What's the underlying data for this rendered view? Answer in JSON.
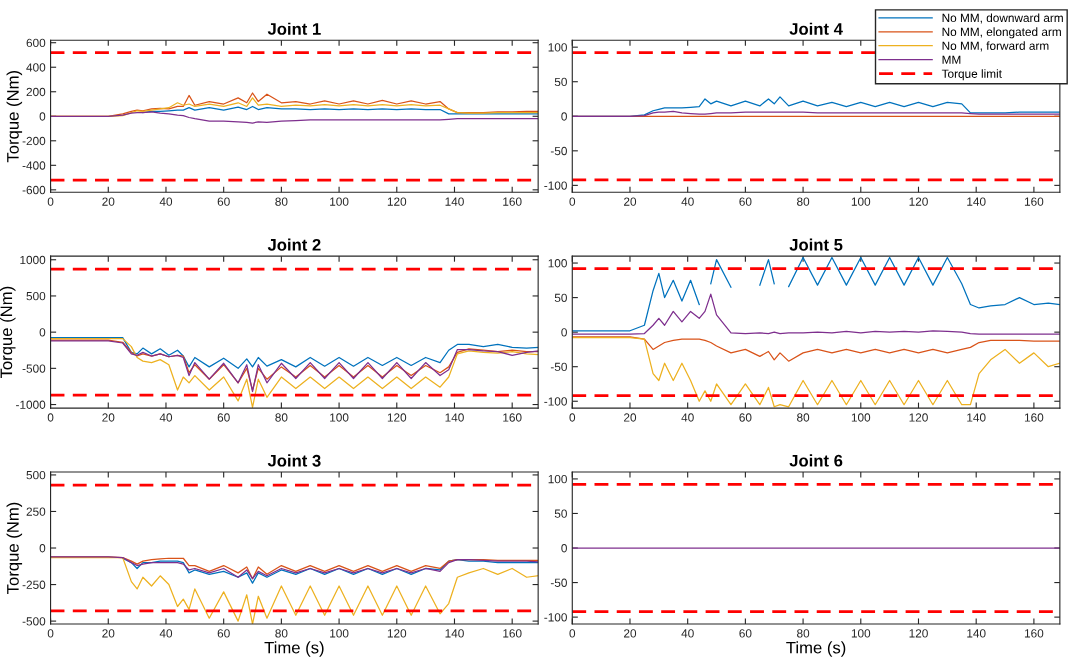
{
  "chart_data": [
    {
      "type": "line",
      "title": "Joint 1",
      "ylabel": "Torque (Nm)",
      "xlim": [
        0,
        169
      ],
      "xticks": [
        0,
        20,
        40,
        60,
        80,
        100,
        120,
        140,
        160
      ],
      "ylim": [
        -620,
        620
      ],
      "yticks": [
        -600,
        -400,
        -200,
        0,
        200,
        400,
        600
      ],
      "x": [
        0,
        20,
        25,
        28,
        30,
        32,
        35,
        38,
        41,
        44,
        46,
        48,
        50,
        55,
        60,
        65,
        68,
        70,
        72,
        75,
        80,
        85,
        90,
        95,
        100,
        105,
        110,
        115,
        120,
        125,
        130,
        135,
        138,
        141,
        145,
        150,
        155,
        160,
        165,
        169
      ],
      "series": [
        {
          "color": "#0072bd",
          "values": [
            null,
            null,
            null,
            null,
            null,
            30,
            40,
            40,
            45,
            50,
            50,
            70,
            50,
            70,
            50,
            75,
            55,
            80,
            55,
            70,
            60,
            60,
            55,
            60,
            55,
            60,
            55,
            60,
            55,
            60,
            55,
            55,
            20,
            20,
            20,
            20,
            20,
            20,
            20,
            20
          ]
        },
        {
          "color": "#d95319",
          "values": [
            0,
            0,
            20,
            40,
            50,
            45,
            60,
            65,
            60,
            80,
            80,
            170,
            90,
            120,
            100,
            150,
            110,
            190,
            120,
            180,
            110,
            120,
            100,
            125,
            100,
            125,
            100,
            130,
            100,
            125,
            100,
            120,
            60,
            30,
            30,
            30,
            35,
            35,
            40,
            40
          ]
        },
        {
          "color": "#edb120",
          "values": [
            0,
            0,
            5,
            30,
            45,
            40,
            50,
            60,
            70,
            110,
            90,
            100,
            80,
            100,
            80,
            110,
            80,
            150,
            90,
            100,
            80,
            90,
            85,
            95,
            85,
            95,
            85,
            95,
            85,
            95,
            85,
            90,
            60,
            30,
            25,
            25,
            30,
            30,
            30,
            30
          ]
        },
        {
          "color": "#7e2f8e",
          "values": [
            0,
            0,
            10,
            25,
            30,
            30,
            35,
            25,
            20,
            10,
            5,
            -10,
            -20,
            -40,
            -40,
            -45,
            -50,
            -55,
            -45,
            -50,
            -40,
            -35,
            -30,
            -30,
            -30,
            -30,
            -30,
            -30,
            -30,
            -30,
            -30,
            -30,
            -25,
            -20,
            -20,
            -20,
            -20,
            -20,
            -20,
            -20
          ]
        }
      ],
      "ref_lines": [
        {
          "axis": "y",
          "value": 520,
          "color": "#ff0000",
          "line_style": "dashed"
        },
        {
          "axis": "y",
          "value": -520,
          "color": "#ff0000",
          "line_style": "dashed"
        }
      ]
    },
    {
      "type": "line",
      "title": "Joint 4",
      "xlim": [
        0,
        169
      ],
      "xticks": [
        0,
        20,
        40,
        60,
        80,
        100,
        120,
        140,
        160
      ],
      "ylim": [
        -110,
        110
      ],
      "yticks": [
        -100,
        -50,
        0,
        50,
        100
      ],
      "legend": "top right",
      "x": [
        0,
        20,
        25,
        28,
        30,
        32,
        35,
        38,
        41,
        44,
        46,
        48,
        50,
        55,
        60,
        65,
        68,
        70,
        72,
        75,
        80,
        85,
        90,
        95,
        100,
        105,
        110,
        115,
        120,
        125,
        130,
        135,
        138,
        141,
        145,
        150,
        155,
        160,
        165,
        169
      ],
      "series": [
        {
          "name": "No MM, downward arm",
          "color": "#0072bd",
          "values": [
            0,
            0,
            2,
            8,
            10,
            12,
            12,
            12,
            13,
            14,
            25,
            18,
            22,
            15,
            22,
            15,
            25,
            18,
            28,
            15,
            22,
            15,
            20,
            14,
            20,
            14,
            20,
            14,
            20,
            14,
            20,
            18,
            5,
            5,
            5,
            5,
            6,
            6,
            6,
            6
          ]
        },
        {
          "name": "No MM, elongated arm",
          "color": "#d95319",
          "values": [
            0,
            0,
            0,
            0,
            0,
            0,
            0,
            0,
            0,
            0,
            0,
            0,
            0,
            0,
            0,
            0,
            0,
            0,
            0,
            0,
            0,
            0,
            0,
            0,
            0,
            0,
            0,
            0,
            0,
            0,
            0,
            0,
            0,
            0,
            0,
            0,
            0,
            0,
            0,
            0
          ]
        },
        {
          "name": "No MM, forward arm",
          "color": "#edb120",
          "values": [
            null,
            null,
            null,
            null,
            null,
            null,
            null,
            null,
            null,
            null,
            null,
            null,
            null,
            null,
            null,
            null,
            null,
            null,
            null,
            null,
            null,
            null,
            null,
            null,
            null,
            null,
            null,
            null,
            null,
            null,
            null,
            null,
            null,
            null,
            null,
            null,
            null,
            null,
            null,
            null
          ]
        },
        {
          "name": "MM",
          "color": "#7e2f8e",
          "values": [
            0,
            0,
            1,
            5,
            6,
            6,
            7,
            5,
            4,
            3,
            3,
            4,
            5,
            5,
            6,
            6,
            6,
            6,
            6,
            6,
            6,
            5,
            5,
            5,
            5,
            5,
            5,
            5,
            5,
            5,
            5,
            5,
            4,
            3,
            3,
            3,
            3,
            3,
            3,
            3
          ]
        }
      ],
      "ref_lines": [
        {
          "axis": "y",
          "value": 92,
          "label": "Torque limit",
          "color": "#ff0000",
          "line_style": "dashed"
        },
        {
          "axis": "y",
          "value": -92,
          "color": "#ff0000",
          "line_style": "dashed"
        }
      ]
    },
    {
      "type": "line",
      "title": "Joint 2",
      "ylabel": "Torque (Nm)",
      "xlim": [
        0,
        169
      ],
      "xticks": [
        0,
        20,
        40,
        60,
        80,
        100,
        120,
        140,
        160
      ],
      "ylim": [
        -1050,
        1050
      ],
      "yticks": [
        -1000,
        -500,
        0,
        500,
        1000
      ],
      "x": [
        0,
        20,
        25,
        28,
        30,
        32,
        35,
        38,
        41,
        44,
        46,
        48,
        50,
        55,
        60,
        65,
        68,
        70,
        72,
        75,
        80,
        85,
        90,
        95,
        100,
        105,
        110,
        115,
        120,
        125,
        130,
        135,
        138,
        141,
        145,
        150,
        155,
        160,
        165,
        169
      ],
      "series": [
        {
          "color": "#0072bd",
          "values": [
            -75,
            -75,
            -75,
            -280,
            -300,
            -220,
            -300,
            -230,
            -320,
            -250,
            -330,
            -480,
            -350,
            -480,
            -360,
            -500,
            -370,
            -480,
            -350,
            -470,
            -380,
            -480,
            -350,
            -470,
            -350,
            -470,
            -350,
            -460,
            -350,
            -460,
            -350,
            -420,
            -250,
            -170,
            -170,
            -200,
            -170,
            -210,
            -220,
            -210
          ]
        },
        {
          "color": "#d95319",
          "values": [
            -110,
            -110,
            -140,
            -280,
            -330,
            -300,
            -330,
            -300,
            -340,
            -320,
            -330,
            -560,
            -450,
            -650,
            -450,
            -700,
            -500,
            -800,
            -500,
            -650,
            -480,
            -620,
            -460,
            -620,
            -460,
            -620,
            -460,
            -620,
            -460,
            -600,
            -460,
            -560,
            -480,
            -280,
            -230,
            -250,
            -270,
            -250,
            -270,
            -270
          ]
        },
        {
          "color": "#edb120",
          "values": [
            -90,
            -90,
            -90,
            -200,
            -350,
            -400,
            -420,
            -380,
            -450,
            -800,
            -620,
            -700,
            -600,
            -800,
            -620,
            -950,
            -650,
            -1040,
            -650,
            -900,
            -620,
            -780,
            -620,
            -780,
            -620,
            -780,
            -620,
            -780,
            -620,
            -780,
            -620,
            -760,
            -620,
            -300,
            -260,
            -280,
            -290,
            -270,
            -300,
            -310
          ]
        },
        {
          "color": "#7e2f8e",
          "values": [
            -120,
            -120,
            -150,
            -300,
            -320,
            -280,
            -330,
            -300,
            -340,
            -320,
            -350,
            -600,
            -420,
            -650,
            -430,
            -700,
            -450,
            -820,
            -450,
            -700,
            -430,
            -640,
            -420,
            -640,
            -420,
            -640,
            -420,
            -640,
            -420,
            -640,
            -420,
            -600,
            -520,
            -240,
            -240,
            -260,
            -270,
            -320,
            -280,
            -260
          ]
        }
      ],
      "ref_lines": [
        {
          "axis": "y",
          "value": 870,
          "color": "#ff0000",
          "line_style": "dashed"
        },
        {
          "axis": "y",
          "value": -870,
          "color": "#ff0000",
          "line_style": "dashed"
        }
      ]
    },
    {
      "type": "line",
      "title": "Joint 5",
      "xlim": [
        0,
        169
      ],
      "xticks": [
        0,
        20,
        40,
        60,
        80,
        100,
        120,
        140,
        160
      ],
      "ylim": [
        -110,
        110
      ],
      "yticks": [
        -100,
        -50,
        0,
        50,
        100
      ],
      "x": [
        0,
        20,
        25,
        28,
        30,
        32,
        35,
        38,
        41,
        44,
        46,
        48,
        50,
        55,
        60,
        65,
        68,
        70,
        72,
        75,
        80,
        85,
        90,
        95,
        100,
        105,
        110,
        115,
        120,
        125,
        130,
        135,
        138,
        141,
        145,
        150,
        155,
        160,
        165,
        169
      ],
      "series": [
        {
          "color": "#0072bd",
          "values": [
            2,
            2,
            10,
            60,
            85,
            50,
            75,
            45,
            75,
            40,
            null,
            70,
            105,
            65,
            null,
            68,
            105,
            70,
            null,
            66,
            108,
            68,
            108,
            68,
            108,
            68,
            108,
            68,
            108,
            68,
            108,
            70,
            40,
            35,
            38,
            40,
            50,
            40,
            42,
            40
          ]
        },
        {
          "color": "#d95319",
          "values": [
            -7,
            -7,
            -10,
            -25,
            -20,
            -15,
            -12,
            -10,
            -10,
            -10,
            -12,
            -15,
            -20,
            -30,
            -25,
            -35,
            -28,
            -40,
            -30,
            -42,
            -30,
            -25,
            -30,
            -25,
            -30,
            -25,
            -30,
            -25,
            -30,
            -25,
            -30,
            -25,
            -22,
            -15,
            -12,
            -12,
            -12,
            -13,
            -13,
            -13
          ]
        },
        {
          "color": "#edb120",
          "values": [
            -8,
            -8,
            -10,
            -60,
            -70,
            -45,
            -70,
            -45,
            -70,
            -100,
            -85,
            -100,
            -75,
            -105,
            -75,
            -105,
            -80,
            -108,
            -105,
            -108,
            -70,
            -105,
            -70,
            -105,
            -70,
            -105,
            -70,
            -105,
            -70,
            -105,
            -70,
            -105,
            -105,
            -60,
            -40,
            -25,
            -45,
            -30,
            -50,
            -45
          ]
        },
        {
          "color": "#7e2f8e",
          "values": [
            -3,
            -3,
            -2,
            10,
            20,
            10,
            30,
            15,
            30,
            20,
            30,
            55,
            25,
            -1,
            -2,
            -1,
            -2,
            0,
            -2,
            -1,
            -1,
            0,
            -1,
            1,
            -1,
            1,
            0,
            1,
            0,
            2,
            1,
            0,
            -2,
            -3,
            -3,
            -3,
            -3,
            -3,
            -3,
            -3
          ]
        }
      ],
      "ref_lines": [
        {
          "axis": "y",
          "value": 92,
          "color": "#ff0000",
          "line_style": "dashed"
        },
        {
          "axis": "y",
          "value": -92,
          "color": "#ff0000",
          "line_style": "dashed"
        }
      ]
    },
    {
      "type": "line",
      "title": "Joint 3",
      "ylabel": "Torque (Nm)",
      "xlabel": "Time (s)",
      "xlim": [
        0,
        169
      ],
      "xticks": [
        0,
        20,
        40,
        60,
        80,
        100,
        120,
        140,
        160
      ],
      "ylim": [
        -520,
        520
      ],
      "yticks": [
        -500,
        -250,
        0,
        250,
        500
      ],
      "x": [
        0,
        20,
        25,
        28,
        30,
        32,
        35,
        38,
        41,
        44,
        46,
        48,
        50,
        55,
        60,
        65,
        68,
        70,
        72,
        75,
        80,
        85,
        90,
        95,
        100,
        105,
        110,
        115,
        120,
        125,
        130,
        135,
        138,
        141,
        145,
        150,
        155,
        160,
        165,
        169
      ],
      "series": [
        {
          "color": "#0072bd",
          "values": [
            null,
            null,
            -70,
            -100,
            -140,
            -100,
            -100,
            -90,
            -90,
            -90,
            -100,
            -170,
            -150,
            -180,
            -160,
            -200,
            -170,
            -240,
            -170,
            -200,
            -150,
            -180,
            -140,
            -180,
            -140,
            -180,
            -140,
            -180,
            -140,
            -180,
            -140,
            -150,
            -90,
            -80,
            -90,
            -90,
            -100,
            -100,
            -100,
            -100
          ]
        },
        {
          "color": "#d95319",
          "values": [
            -60,
            -60,
            -65,
            -90,
            -110,
            -90,
            -80,
            -75,
            -70,
            -70,
            -70,
            -120,
            -120,
            -160,
            -120,
            -170,
            -130,
            -210,
            -130,
            -180,
            -120,
            -160,
            -120,
            -160,
            -120,
            -160,
            -120,
            -160,
            -120,
            -160,
            -120,
            -140,
            -90,
            -80,
            -80,
            -80,
            -85,
            -85,
            -85,
            -85
          ]
        },
        {
          "color": "#edb120",
          "values": [
            -65,
            -65,
            -65,
            -230,
            -280,
            -200,
            -260,
            -190,
            -250,
            -400,
            -350,
            -420,
            -280,
            -480,
            -300,
            -500,
            -320,
            -520,
            -330,
            -480,
            -260,
            -460,
            -260,
            -460,
            -260,
            -460,
            -260,
            -460,
            -260,
            -460,
            -260,
            -450,
            -380,
            -200,
            -170,
            -140,
            -180,
            -140,
            -200,
            -190
          ]
        },
        {
          "color": "#7e2f8e",
          "values": [
            -60,
            -60,
            -65,
            -100,
            -120,
            -110,
            -100,
            -100,
            -100,
            -100,
            -110,
            -150,
            -140,
            -170,
            -140,
            -200,
            -150,
            -210,
            -160,
            -190,
            -140,
            -170,
            -140,
            -170,
            -140,
            -170,
            -140,
            -170,
            -140,
            -170,
            -140,
            -160,
            -100,
            -80,
            -80,
            -85,
            -90,
            -90,
            -90,
            -95
          ]
        }
      ],
      "ref_lines": [
        {
          "axis": "y",
          "value": 430,
          "color": "#ff0000",
          "line_style": "dashed"
        },
        {
          "axis": "y",
          "value": -430,
          "color": "#ff0000",
          "line_style": "dashed"
        }
      ]
    },
    {
      "type": "line",
      "title": "Joint 6",
      "xlabel": "Time (s)",
      "xlim": [
        0,
        169
      ],
      "xticks": [
        0,
        20,
        40,
        60,
        80,
        100,
        120,
        140,
        160
      ],
      "ylim": [
        -110,
        110
      ],
      "yticks": [
        -100,
        -50,
        0,
        50,
        100
      ],
      "x": [
        0,
        169
      ],
      "series": [
        {
          "color": "#7e2f8e",
          "values": [
            0,
            0
          ]
        }
      ],
      "ref_lines": [
        {
          "axis": "y",
          "value": 92,
          "color": "#ff0000",
          "line_style": "dashed"
        },
        {
          "axis": "y",
          "value": -92,
          "color": "#ff0000",
          "line_style": "dashed"
        }
      ]
    }
  ]
}
